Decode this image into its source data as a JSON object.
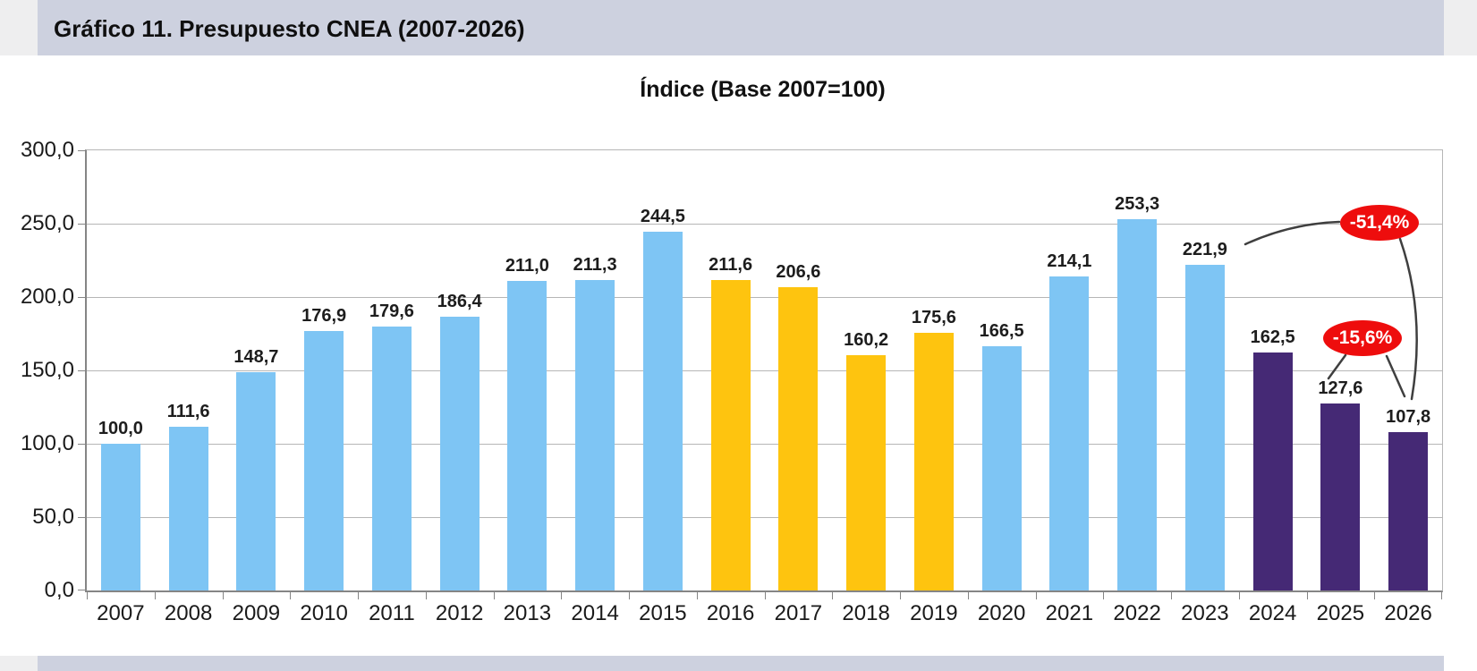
{
  "header": {
    "title": "Gráfico 11. Presupuesto CNEA (2007-2026)"
  },
  "chart_data": {
    "type": "bar",
    "title": "Índice (Base 2007=100)",
    "categories": [
      "2007",
      "2008",
      "2009",
      "2010",
      "2011",
      "2012",
      "2013",
      "2014",
      "2015",
      "2016",
      "2017",
      "2018",
      "2019",
      "2020",
      "2021",
      "2022",
      "2023",
      "2024",
      "2025",
      "2026"
    ],
    "values": [
      100.0,
      111.6,
      148.7,
      176.9,
      179.6,
      186.4,
      211.0,
      211.3,
      244.5,
      211.6,
      206.6,
      160.2,
      175.6,
      166.5,
      214.1,
      253.3,
      221.9,
      162.5,
      127.6,
      107.8
    ],
    "value_labels": [
      "100,0",
      "111,6",
      "148,7",
      "176,9",
      "179,6",
      "186,4",
      "211,0",
      "211,3",
      "244,5",
      "211,6",
      "206,6",
      "160,2",
      "175,6",
      "166,5",
      "214,1",
      "253,3",
      "221,9",
      "162,5",
      "127,6",
      "107,8"
    ],
    "color_groups": [
      "blue",
      "blue",
      "blue",
      "blue",
      "blue",
      "blue",
      "blue",
      "blue",
      "blue",
      "yellow",
      "yellow",
      "yellow",
      "yellow",
      "blue",
      "blue",
      "blue",
      "blue",
      "purple",
      "purple",
      "purple"
    ],
    "palette": {
      "blue": "#7ec5f4",
      "yellow": "#fec40f",
      "purple": "#452975"
    },
    "ylim": [
      0,
      300
    ],
    "ytick_values": [
      0,
      50,
      100,
      150,
      200,
      250,
      300
    ],
    "ytick_labels": [
      "0,0",
      "50,0",
      "100,0",
      "150,0",
      "200,0",
      "250,0",
      "300,0"
    ],
    "grid": true,
    "legend": false,
    "annotations": [
      {
        "label": "-51,4%",
        "connects": [
          "2023",
          "2026"
        ],
        "fill": "#ee0d0d",
        "text_color": "#ffffff"
      },
      {
        "label": "-15,6%",
        "connects": [
          "2025",
          "2026"
        ],
        "fill": "#ee0d0d",
        "text_color": "#ffffff"
      }
    ]
  }
}
